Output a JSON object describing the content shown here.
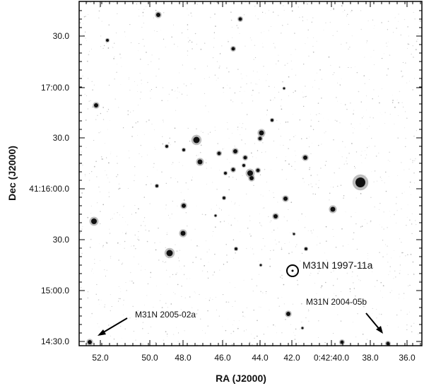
{
  "figure": {
    "x_axis_title": "RA (J2000)",
    "y_axis_title": "Dec (J2000)",
    "x_tick_labels": [
      "52.0",
      "50.0",
      "48.0",
      "46.0",
      "44.0",
      "42.0",
      "0:42:40.0",
      "38.0",
      "36.0"
    ],
    "y_tick_labels": [
      "30.0",
      "17:00.0",
      "30.0",
      "41:16:00.0",
      "30.0",
      "15:00.0",
      "14:30.0"
    ],
    "annotations": {
      "target": "M31N 1997-11a",
      "left_arrow": "M31N 2005-02a",
      "right_arrow": "M31N 2004-05b"
    }
  },
  "colors": {
    "frame": "#000000",
    "background": "#ffffff",
    "stars": "#111111"
  }
}
